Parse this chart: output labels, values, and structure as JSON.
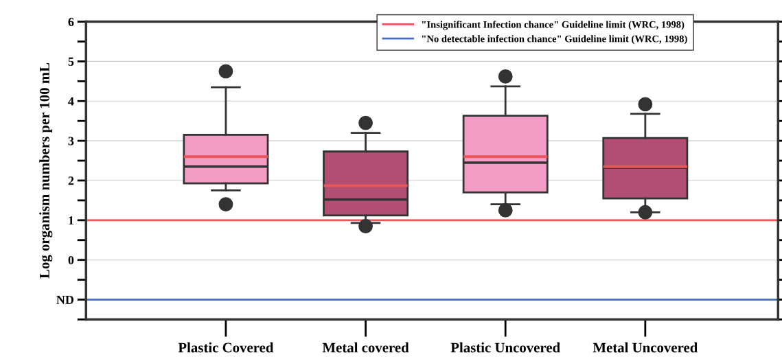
{
  "chart_data": {
    "type": "box",
    "ylabel": "Log organism numbers per 100 mL",
    "categories": [
      "Plastic Covered",
      "Metal covered",
      "Plastic Uncovered",
      "Metal Uncovered"
    ],
    "colors": [
      "#f29cc6",
      "#b24d73",
      "#f29cc6",
      "#b24d73"
    ],
    "boxes": [
      {
        "low": 1.75,
        "q1": 1.93,
        "median": 2.35,
        "q3": 3.15,
        "high": 4.35,
        "mean": 2.6,
        "outliers": [
          1.4,
          4.75
        ]
      },
      {
        "low": 0.93,
        "q1": 1.12,
        "median": 1.52,
        "q3": 2.73,
        "high": 3.2,
        "mean": 1.87,
        "outliers": [
          0.85,
          3.45
        ]
      },
      {
        "low": 1.4,
        "q1": 1.7,
        "median": 2.45,
        "q3": 3.63,
        "high": 4.37,
        "mean": 2.6,
        "outliers": [
          1.25,
          4.62
        ]
      },
      {
        "low": 1.2,
        "q1": 1.55,
        "median": 2.33,
        "q3": 3.07,
        "high": 3.68,
        "mean": 2.35,
        "outliers": [
          1.2,
          3.92
        ]
      }
    ],
    "ylim": [
      -1.5,
      6
    ],
    "yticks": [
      {
        "value": -1.5,
        "label": null
      },
      {
        "value": -1,
        "label": "ND"
      },
      {
        "value": -0.5,
        "label": null
      },
      0,
      {
        "value": 0.5,
        "label": null
      },
      1,
      {
        "value": 1.5,
        "label": null
      },
      2,
      {
        "value": 2.5,
        "label": null
      },
      3,
      {
        "value": 3.5,
        "label": null
      },
      4,
      {
        "value": 4.5,
        "label": null
      },
      5,
      {
        "value": 5.5,
        "label": null
      },
      6
    ],
    "grid": "y",
    "ref_lines": [
      {
        "axis": "y",
        "value": 1,
        "label": "\"Insignificant Infection chance\" Guideline limit (WRC, 1998)",
        "color": "#e8555a"
      },
      {
        "axis": "y",
        "value": -1,
        "label": "\"No detectable infection chance\" Guideline limit (WRC, 1998)",
        "color": "#4a6cc0"
      }
    ],
    "legend": "top right"
  }
}
